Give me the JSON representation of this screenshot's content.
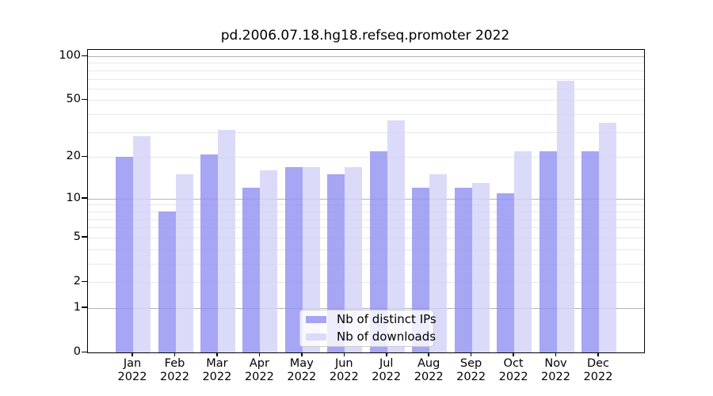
{
  "title": "pd.2006.07.18.hg18.refseq.promoter 2022",
  "legend": {
    "items": [
      {
        "label": "Nb of distinct IPs",
        "color": "rgba(144,144,241,0.8)",
        "color_hex_approx": "#a6a6f4"
      },
      {
        "label": "Nb of downloads",
        "color": "rgba(210,210,247,0.8)",
        "color_hex_approx": "#d9d9f8"
      }
    ]
  },
  "colors": {
    "background": "#ffffff",
    "axis_spine": "#000000",
    "grid_major": "#b4b4b4",
    "grid_minor": "#e9e9e9",
    "bar_distinct_ips": "#a6a6f4",
    "bar_downloads": "#d9d9f8"
  },
  "chart_data": {
    "type": "bar",
    "title": "pd.2006.07.18.hg18.refseq.promoter 2022",
    "categories": [
      "Jan 2022",
      "Feb 2022",
      "Mar 2022",
      "Apr 2022",
      "May 2022",
      "Jun 2022",
      "Jul 2022",
      "Aug 2022",
      "Sep 2022",
      "Oct 2022",
      "Nov 2022",
      "Dec 2022"
    ],
    "series": [
      {
        "name": "Nb of distinct IPs",
        "color": "rgba(144,144,241,0.8)",
        "values": [
          20,
          8,
          21,
          12,
          17,
          15,
          22,
          12,
          12,
          11,
          22,
          22
        ]
      },
      {
        "name": "Nb of downloads",
        "color": "rgba(210,210,247,0.8)",
        "values": [
          28,
          15,
          31,
          16,
          17,
          17,
          36,
          15,
          13,
          22,
          68,
          35
        ]
      }
    ],
    "xlabel": "",
    "ylabel": "",
    "yscale": "log1p",
    "yticks": [
      0,
      1,
      2,
      5,
      10,
      20,
      50,
      100
    ],
    "ytick_labels": [
      "0",
      "1",
      "2",
      "5",
      "10",
      "20",
      "50",
      "100"
    ],
    "ylim": [
      0,
      110
    ],
    "grid": "on",
    "legend_position": "lower center"
  }
}
